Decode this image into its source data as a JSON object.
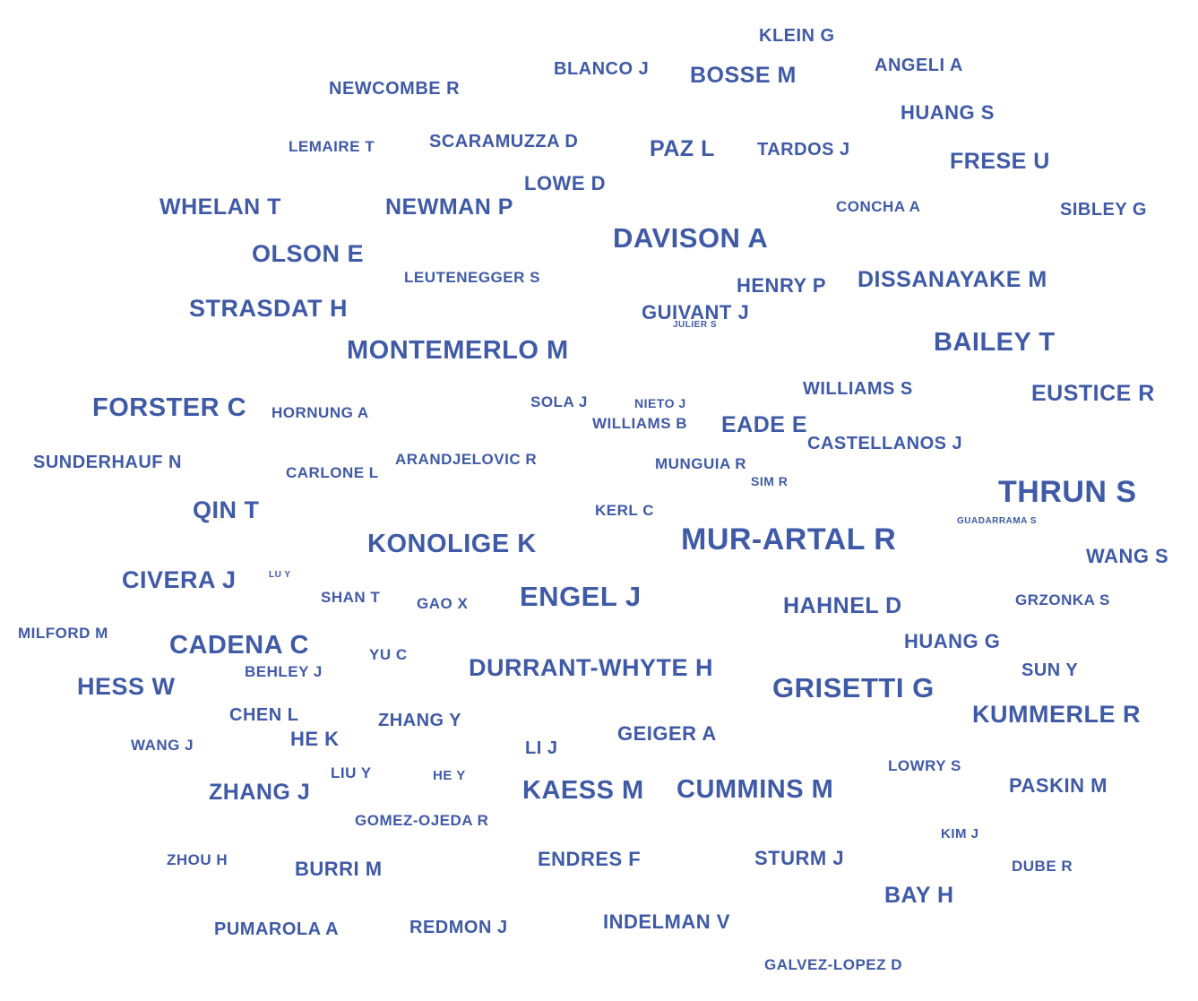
{
  "color": "#3f5aa6",
  "words": [
    {
      "text": "KLEIN G",
      "weight": 4
    },
    {
      "text": "BLANCO J",
      "weight": 4
    },
    {
      "text": "BOSSE M",
      "weight": 6
    },
    {
      "text": "ANGELI A",
      "weight": 4
    },
    {
      "text": "NEWCOMBE R",
      "weight": 4
    },
    {
      "text": "HUANG S",
      "weight": 5
    },
    {
      "text": "LEMAIRE T",
      "weight": 3
    },
    {
      "text": "SCARAMUZZA D",
      "weight": 4
    },
    {
      "text": "PAZ L",
      "weight": 6
    },
    {
      "text": "TARDOS J",
      "weight": 4
    },
    {
      "text": "FRESE U",
      "weight": 6
    },
    {
      "text": "LOWE D",
      "weight": 5
    },
    {
      "text": "WHELAN T",
      "weight": 6
    },
    {
      "text": "NEWMAN P",
      "weight": 6
    },
    {
      "text": "CONCHA A",
      "weight": 3
    },
    {
      "text": "SIBLEY G",
      "weight": 4
    },
    {
      "text": "DAVISON A",
      "weight": 8
    },
    {
      "text": "OLSON E",
      "weight": 7
    },
    {
      "text": "LEUTENEGGER S",
      "weight": 3
    },
    {
      "text": "HENRY P",
      "weight": 5
    },
    {
      "text": "DISSANAYAKE M",
      "weight": 6
    },
    {
      "text": "STRASDAT H",
      "weight": 7
    },
    {
      "text": "GUIVANT J",
      "weight": 5
    },
    {
      "text": "JULIER S",
      "weight": 1
    },
    {
      "text": "BAILEY T",
      "weight": 8
    },
    {
      "text": "MONTEMERLO M",
      "weight": 8
    },
    {
      "text": "WILLIAMS S",
      "weight": 4
    },
    {
      "text": "EUSTICE R",
      "weight": 6
    },
    {
      "text": "FORSTER C",
      "weight": 8
    },
    {
      "text": "HORNUNG A",
      "weight": 4
    },
    {
      "text": "SOLA J",
      "weight": 3
    },
    {
      "text": "NIETO J",
      "weight": 2
    },
    {
      "text": "WILLIAMS B",
      "weight": 3
    },
    {
      "text": "EADE E",
      "weight": 6
    },
    {
      "text": "CASTELLANOS J",
      "weight": 4
    },
    {
      "text": "SUNDERHAUF N",
      "weight": 4
    },
    {
      "text": "CARLONE L",
      "weight": 3
    },
    {
      "text": "ARANDJELOVIC R",
      "weight": 3
    },
    {
      "text": "MUNGUIA R",
      "weight": 3
    },
    {
      "text": "SIM R",
      "weight": 2
    },
    {
      "text": "THRUN S",
      "weight": 10
    },
    {
      "text": "QIN T",
      "weight": 7
    },
    {
      "text": "KERL C",
      "weight": 3
    },
    {
      "text": "GUADARRAMA S",
      "weight": 1
    },
    {
      "text": "KONOLIGE K",
      "weight": 8
    },
    {
      "text": "MUR-ARTAL R",
      "weight": 10
    },
    {
      "text": "WANG S",
      "weight": 5
    },
    {
      "text": "CIVERA J",
      "weight": 7
    },
    {
      "text": "LU Y",
      "weight": 1
    },
    {
      "text": "SHAN T",
      "weight": 3
    },
    {
      "text": "GAO X",
      "weight": 3
    },
    {
      "text": "ENGEL J",
      "weight": 9
    },
    {
      "text": "HAHNEL D",
      "weight": 6
    },
    {
      "text": "GRZONKA S",
      "weight": 3
    },
    {
      "text": "MILFORD M",
      "weight": 3
    },
    {
      "text": "CADENA C",
      "weight": 8
    },
    {
      "text": "YU C",
      "weight": 3
    },
    {
      "text": "HUANG G",
      "weight": 5
    },
    {
      "text": "DURRANT-WHYTE H",
      "weight": 7
    },
    {
      "text": "BEHLEY J",
      "weight": 3
    },
    {
      "text": "SUN Y",
      "weight": 4
    },
    {
      "text": "HESS W",
      "weight": 7
    },
    {
      "text": "GRISETTI G",
      "weight": 9
    },
    {
      "text": "CHEN L",
      "weight": 4
    },
    {
      "text": "ZHANG Y",
      "weight": 4
    },
    {
      "text": "KUMMERLE R",
      "weight": 7
    },
    {
      "text": "WANG J",
      "weight": 3
    },
    {
      "text": "HE K",
      "weight": 5
    },
    {
      "text": "GEIGER A",
      "weight": 5
    },
    {
      "text": "LI J",
      "weight": 4
    },
    {
      "text": "LIU Y",
      "weight": 3
    },
    {
      "text": "HE Y",
      "weight": 3
    },
    {
      "text": "LOWRY S",
      "weight": 3
    },
    {
      "text": "ZHANG J",
      "weight": 6
    },
    {
      "text": "KAESS M",
      "weight": 8
    },
    {
      "text": "CUMMINS M",
      "weight": 8
    },
    {
      "text": "PASKIN M",
      "weight": 5
    },
    {
      "text": "GOMEZ-OJEDA R",
      "weight": 3
    },
    {
      "text": "KIM J",
      "weight": 3
    },
    {
      "text": "ZHOU H",
      "weight": 3
    },
    {
      "text": "BURRI M",
      "weight": 5
    },
    {
      "text": "ENDRES F",
      "weight": 5
    },
    {
      "text": "STURM J",
      "weight": 5
    },
    {
      "text": "DUBE R",
      "weight": 3
    },
    {
      "text": "BAY H",
      "weight": 6
    },
    {
      "text": "PUMAROLA A",
      "weight": 4
    },
    {
      "text": "REDMON J",
      "weight": 4
    },
    {
      "text": "INDELMAN V",
      "weight": 5
    },
    {
      "text": "GALVEZ-LOPEZ D",
      "weight": 3
    }
  ]
}
